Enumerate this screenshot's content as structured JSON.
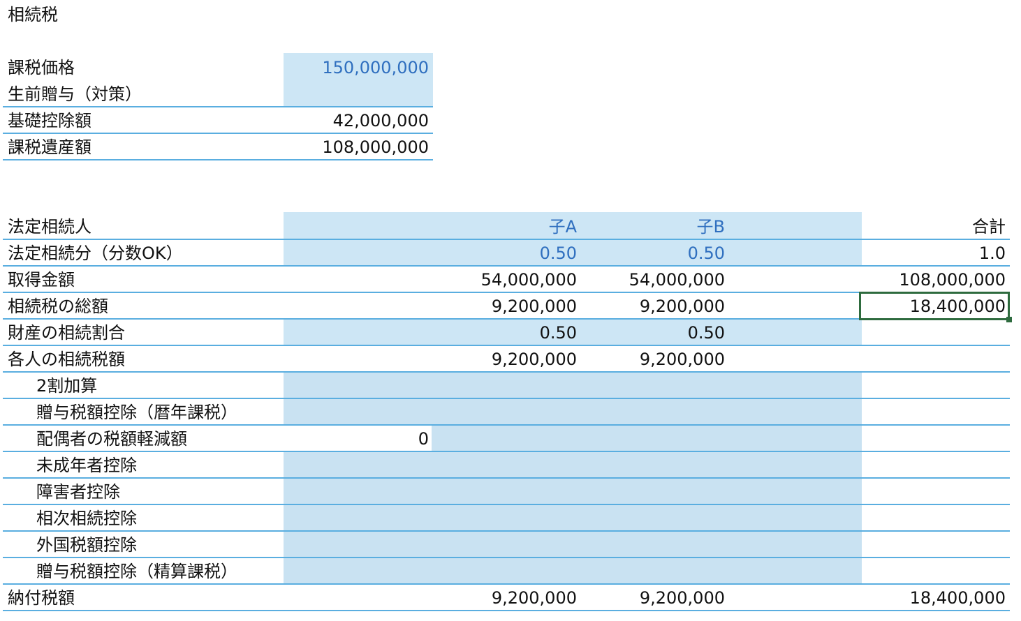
{
  "sheet_title": "相続税",
  "top_table": {
    "rows": [
      {
        "label": "課税価格",
        "value": "150,000,000"
      },
      {
        "label": "生前贈与（対策）",
        "value": ""
      },
      {
        "label": "基礎控除額",
        "value": "42,000,000"
      },
      {
        "label": "課税遺産額",
        "value": "108,000,000"
      }
    ]
  },
  "main_table": {
    "header": {
      "label": "法定相続人",
      "col_a": "子A",
      "col_b": "子B",
      "total": "合計"
    },
    "rows": [
      {
        "label": "法定相続分（分数OK）",
        "pre": "",
        "a": "0.50",
        "b": "0.50",
        "total": "1.0"
      },
      {
        "label": "取得金額",
        "pre": "",
        "a": "54,000,000",
        "b": "54,000,000",
        "total": "108,000,000"
      },
      {
        "label": "相続税の総額",
        "pre": "",
        "a": "9,200,000",
        "b": "9,200,000",
        "total": "18,400,000"
      },
      {
        "label": "財産の相続割合",
        "pre": "",
        "a": "0.50",
        "b": "0.50",
        "total": ""
      },
      {
        "label": "各人の相続税額",
        "pre": "",
        "a": "9,200,000",
        "b": "9,200,000",
        "total": ""
      },
      {
        "label": "2割加算",
        "pre": "",
        "a": "",
        "b": "",
        "total": ""
      },
      {
        "label": "贈与税額控除（暦年課税）",
        "pre": "",
        "a": "",
        "b": "",
        "total": ""
      },
      {
        "label": "配偶者の税額軽減額",
        "pre": "0",
        "a": "",
        "b": "",
        "total": ""
      },
      {
        "label": "未成年者控除",
        "pre": "",
        "a": "",
        "b": "",
        "total": ""
      },
      {
        "label": "障害者控除",
        "pre": "",
        "a": "",
        "b": "",
        "total": ""
      },
      {
        "label": "相次相続控除",
        "pre": "",
        "a": "",
        "b": "",
        "total": ""
      },
      {
        "label": "外国税額控除",
        "pre": "",
        "a": "",
        "b": "",
        "total": ""
      },
      {
        "label": "贈与税額控除（精算課税）",
        "pre": "",
        "a": "",
        "b": "",
        "total": ""
      },
      {
        "label": "納付税額",
        "pre": "",
        "a": "9,200,000",
        "b": "9,200,000",
        "total": "18,400,000"
      }
    ]
  }
}
